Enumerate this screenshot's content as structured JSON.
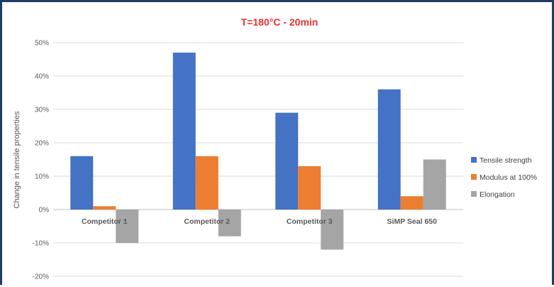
{
  "chart_data": {
    "type": "bar",
    "title": "T=180°C - 20min",
    "ylabel": "Change in tensile properties",
    "xlabel": "",
    "categories": [
      "Competitor 1",
      "Competitor 2",
      "Competitor 3",
      "SiMP Seal 650"
    ],
    "series": [
      {
        "name": "Tensile strength",
        "color": "#4472c4",
        "values": [
          16,
          47,
          29,
          36
        ]
      },
      {
        "name": "Modulus at 100%",
        "color": "#ed7d31",
        "values": [
          1,
          16,
          13,
          4
        ]
      },
      {
        "name": "Elongation",
        "color": "#a5a5a5",
        "values": [
          -10,
          -8,
          -12,
          15
        ]
      }
    ],
    "ylim": [
      -20,
      50
    ],
    "yticks": [
      "50%",
      "40%",
      "30%",
      "20%",
      "10%",
      "0%",
      "-10%",
      "-20%"
    ],
    "grid": true,
    "legend_position": "right"
  }
}
